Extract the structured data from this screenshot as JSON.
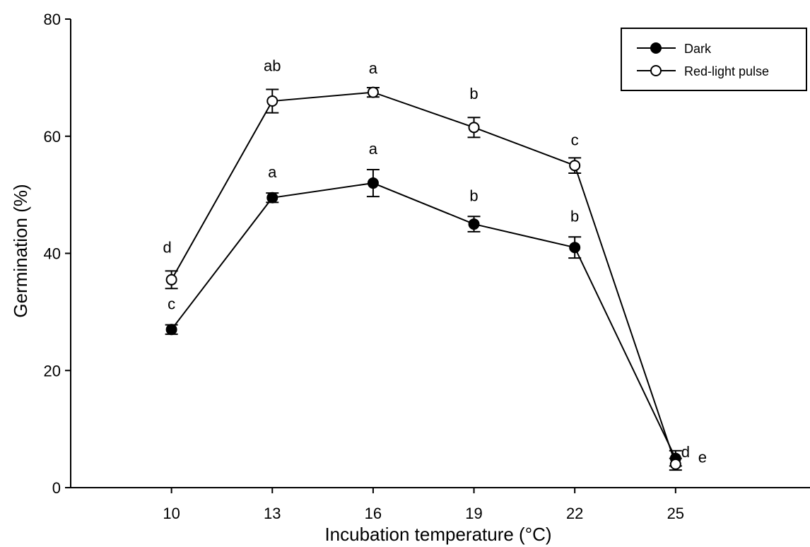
{
  "chart_data": {
    "type": "line",
    "title": "",
    "xlabel": "Incubation temperature (°C)",
    "ylabel": "Germination (%)",
    "x": [
      10,
      13,
      16,
      19,
      22,
      25
    ],
    "xlim": [
      7,
      29
    ],
    "ylim": [
      0,
      80
    ],
    "yticks": [
      0,
      20,
      40,
      60,
      80
    ],
    "x_tick_labels": [
      "10",
      "13",
      "16",
      "19",
      "22",
      "25"
    ],
    "y_tick_labels": [
      "0",
      "20",
      "40",
      "60",
      "80"
    ],
    "grid": false,
    "legend_position": "top-right",
    "series": [
      {
        "name": "Dark",
        "marker": "filled-circle",
        "values": [
          27,
          49.5,
          52,
          45,
          41,
          5
        ],
        "errors": [
          0.8,
          0.8,
          2.3,
          1.3,
          1.8,
          1.3
        ],
        "labels": [
          "c",
          "a",
          "a",
          "b",
          "b",
          "d"
        ]
      },
      {
        "name": "Red-light pulse",
        "marker": "open-circle",
        "values": [
          35.5,
          66,
          67.5,
          61.5,
          55,
          4
        ],
        "errors": [
          1.5,
          2,
          0.8,
          1.7,
          1.3,
          1
        ],
        "labels": [
          "d",
          "ab",
          "a",
          "b",
          "c",
          "e"
        ]
      }
    ]
  }
}
